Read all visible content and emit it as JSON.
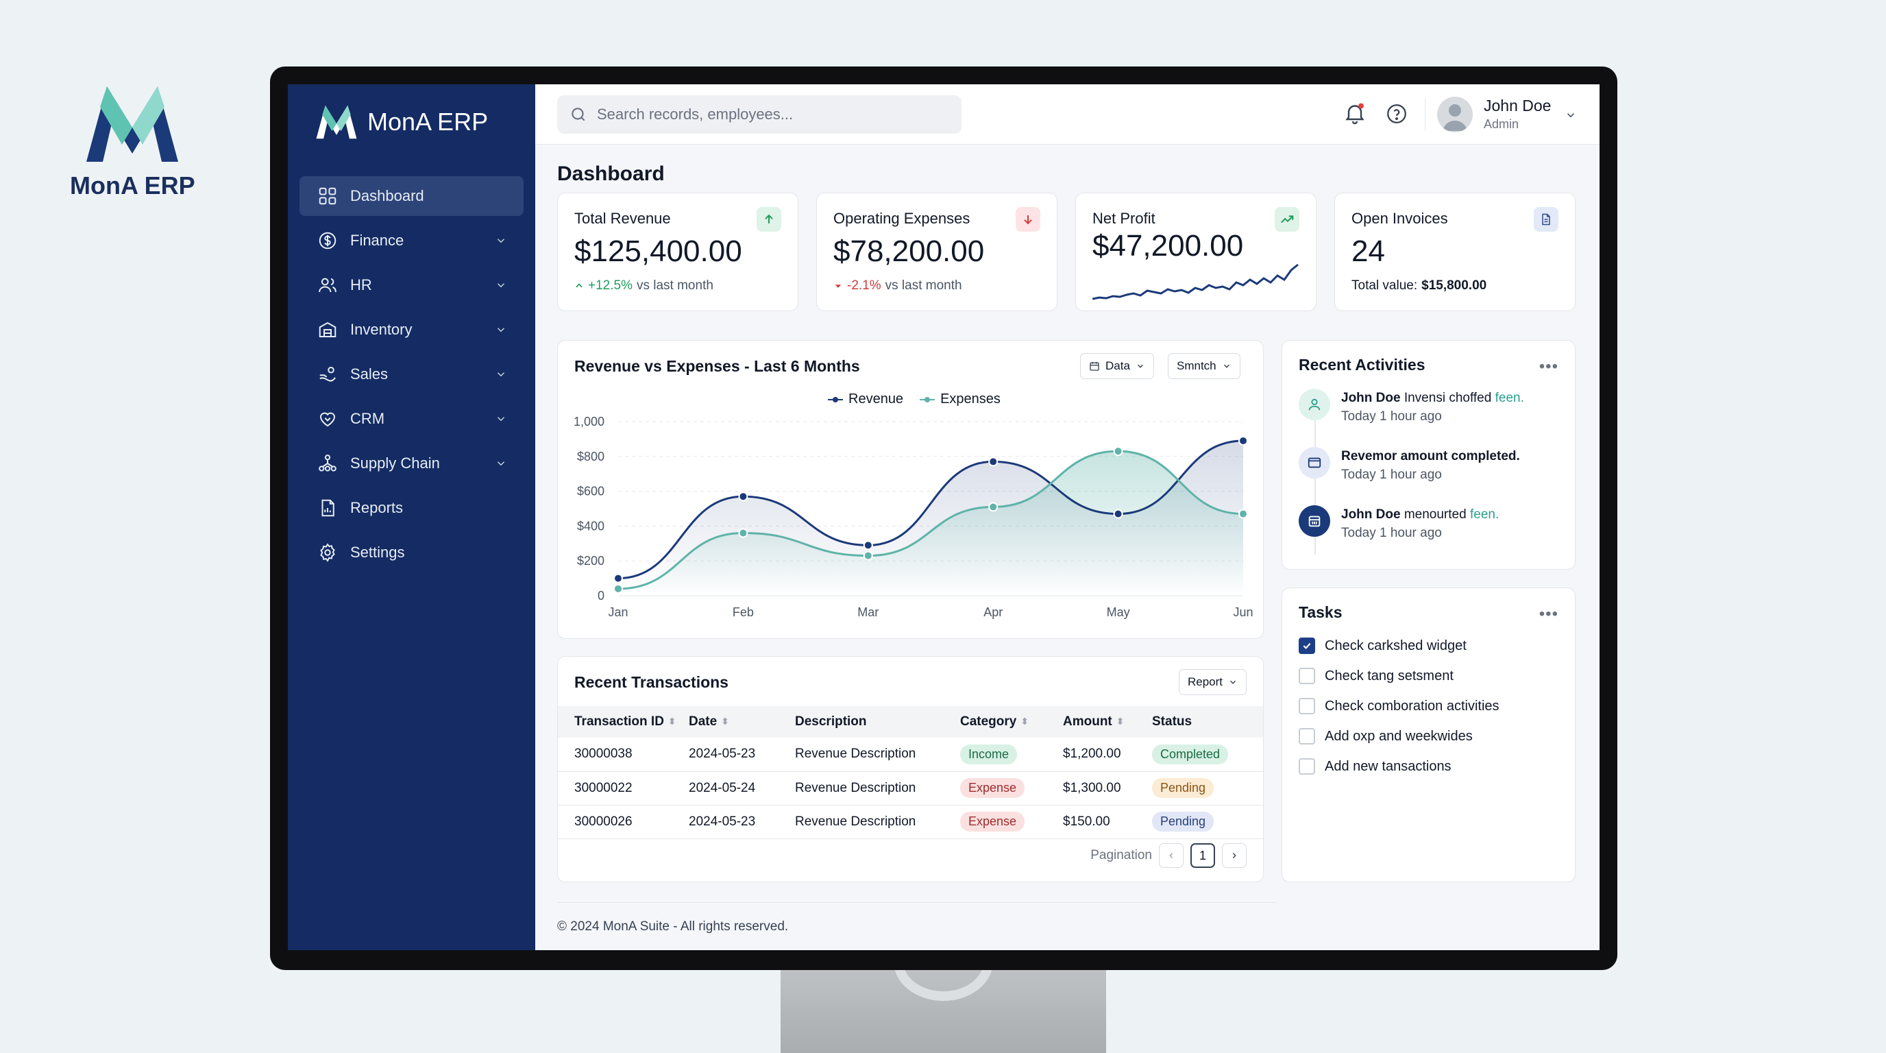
{
  "brand": {
    "name": "MonA ERP"
  },
  "colors": {
    "sidebar": "#142c63",
    "accent_teal": "#5fb3a8",
    "revenue_line": "#1b3a7a",
    "expense_line": "#5fb3a8"
  },
  "search": {
    "placeholder": "Search records, employees..."
  },
  "user": {
    "name": "John Doe",
    "role": "Admin"
  },
  "sidebar": {
    "items": [
      {
        "label": "Dashboard",
        "icon": "dashboard-icon",
        "active": true
      },
      {
        "label": "Finance",
        "icon": "dollar-icon"
      },
      {
        "label": "HR",
        "icon": "users-icon"
      },
      {
        "label": "Inventory",
        "icon": "inventory-icon"
      },
      {
        "label": "Sales",
        "icon": "sales-icon"
      },
      {
        "label": "CRM",
        "icon": "heart-icon"
      },
      {
        "label": "Supply Chain",
        "icon": "supply-chain-icon"
      },
      {
        "label": "Reports",
        "icon": "report-icon"
      },
      {
        "label": "Settings",
        "icon": "gear-icon"
      }
    ]
  },
  "page": {
    "title": "Dashboard"
  },
  "kpis": [
    {
      "title": "Total Revenue",
      "value": "$125,400.00",
      "change": "+12.5%",
      "suffix": "vs last month",
      "icon": "arrow-up-icon"
    },
    {
      "title": "Operating Expenses",
      "value": "$78,200.00",
      "change": "-2.1%",
      "suffix": "vs last month",
      "icon": "arrow-down-icon"
    },
    {
      "title": "Net Profit",
      "value": "$47,200.00",
      "icon": "trend-up-icon"
    },
    {
      "title": "Open Invoices",
      "value": "24",
      "sub_label": "Total value:",
      "sub_value": "$15,800.00",
      "icon": "document-icon"
    }
  ],
  "chart": {
    "title": "Revenue vs Expenses - Last 6 Months",
    "dropdown1": "Data",
    "dropdown2": "Smntch"
  },
  "chart_data": {
    "type": "line",
    "categories": [
      "Jan",
      "Feb",
      "Mar",
      "Apr",
      "May",
      "Jun"
    ],
    "series": [
      {
        "name": "Revenue",
        "values": [
          100,
          570,
          290,
          770,
          470,
          890
        ]
      },
      {
        "name": "Expenses",
        "values": [
          40,
          360,
          230,
          510,
          830,
          470
        ]
      }
    ],
    "y_ticks": [
      "0",
      "$200",
      "$400",
      "$600",
      "$800",
      "1,000"
    ],
    "ylim": [
      0,
      1000
    ],
    "legend": "top-center",
    "grid": true
  },
  "activities": {
    "title": "Recent Activities",
    "items": [
      {
        "who": "John Doe",
        "text": " Invensi choffed ",
        "highlight": "feen.",
        "time": "Today 1 hour ago",
        "icon": "user-icon"
      },
      {
        "who": "Revemor amount completed.",
        "text": "",
        "highlight": "",
        "time": "Today 1 hour ago",
        "icon": "mail-icon"
      },
      {
        "who": "John Doe",
        "text": " menourted ",
        "highlight": "feen.",
        "time": "Today 1 hour ago",
        "icon": "calendar-icon"
      }
    ]
  },
  "tasks": {
    "title": "Tasks",
    "items": [
      {
        "label": "Check carkshed widget",
        "checked": true
      },
      {
        "label": "Check tang setsment",
        "checked": false
      },
      {
        "label": "Check comboration activities",
        "checked": false
      },
      {
        "label": "Add oxp and weekwides",
        "checked": false
      },
      {
        "label": "Add new tansactions",
        "checked": false
      }
    ]
  },
  "transactions": {
    "title": "Recent Transactions",
    "report_button": "Report",
    "headers": {
      "id": "Transaction ID",
      "date": "Date",
      "desc": "Description",
      "cat": "Category",
      "amount": "Amount",
      "status": "Status"
    },
    "rows": [
      {
        "id": "30000038",
        "date": "2024-05-23",
        "desc": "Revenue Description",
        "cat": "Income",
        "amount": "$1,200.00",
        "status": "Completed"
      },
      {
        "id": "30000022",
        "date": "2024-05-24",
        "desc": "Revenue Description",
        "cat": "Expense",
        "amount": "$1,300.00",
        "status": "Pending"
      },
      {
        "id": "30000026",
        "date": "2024-05-23",
        "desc": "Revenue Description",
        "cat": "Expense",
        "amount": "$150.00",
        "status": "Pending"
      }
    ],
    "pagination_label": "Pagination",
    "current_page": "1"
  },
  "footer": {
    "text": "© 2024 MonA Suite - All rights reserved."
  }
}
